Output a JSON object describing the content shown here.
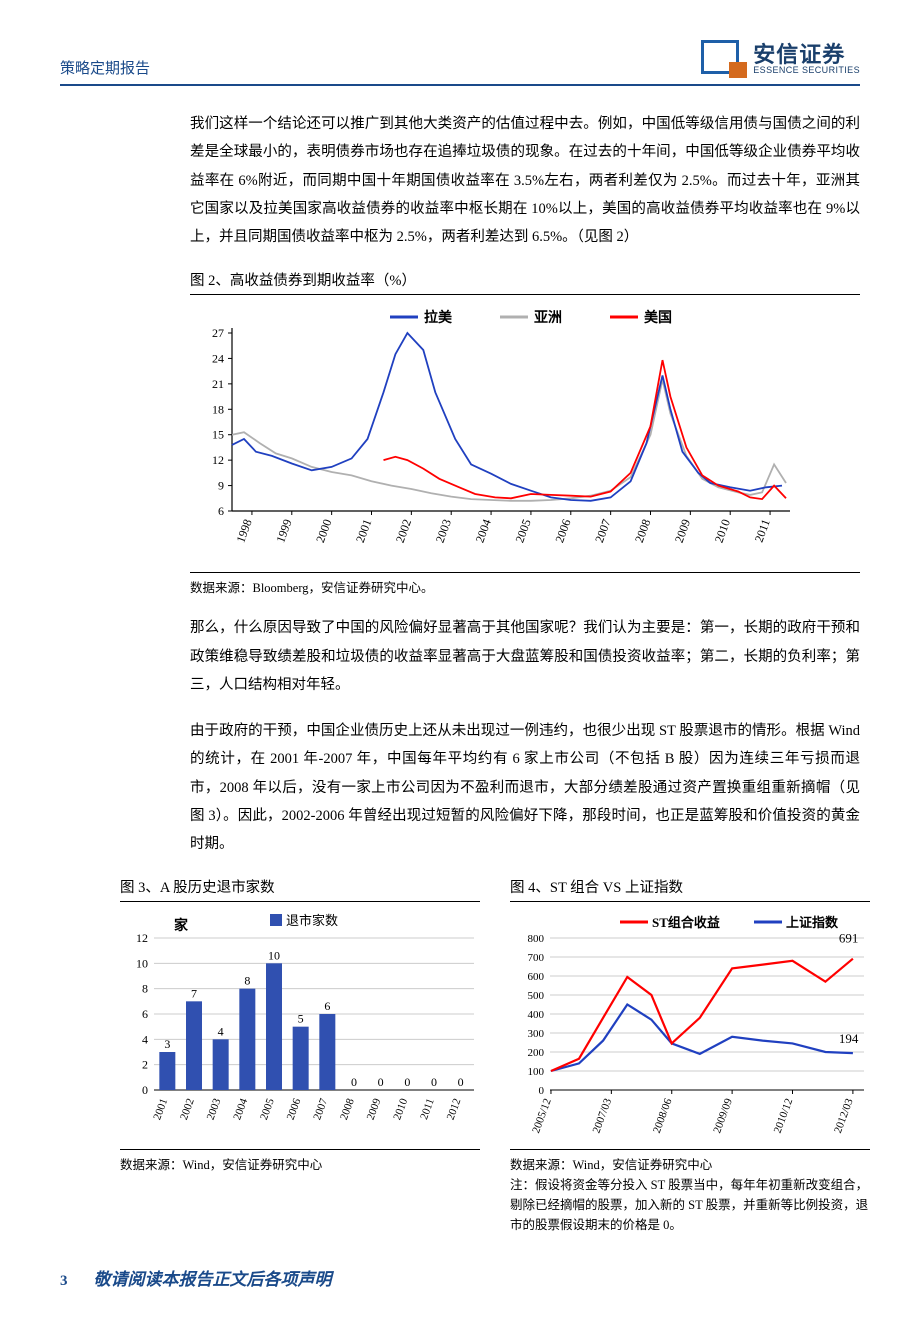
{
  "header": {
    "title": "策略定期报告",
    "logo_cn": "安信证券",
    "logo_en": "ESSENCE SECURITIES"
  },
  "paragraphs": {
    "p1": "我们这样一个结论还可以推广到其他大类资产的估值过程中去。例如，中国低等级信用债与国债之间的利差是全球最小的，表明债券市场也存在追捧垃圾债的现象。在过去的十年间，中国低等级企业债券平均收益率在 6%附近，而同期中国十年期国债收益率在 3.5%左右，两者利差仅为 2.5%。而过去十年，亚洲其它国家以及拉美国家高收益债券的收益率中枢长期在 10%以上，美国的高收益债券平均收益率也在 9%以上，并且同期国债收益率中枢为 2.5%，两者利差达到 6.5%。（见图 2）",
    "p2": "那么，什么原因导致了中国的风险偏好显著高于其他国家呢？我们认为主要是：第一，长期的政府干预和政策维稳导致绩差股和垃圾债的收益率显著高于大盘蓝筹股和国债投资收益率；第二，长期的负利率；第三，人口结构相对年轻。",
    "p3": "由于政府的干预，中国企业债历史上还从未出现过一例违约，也很少出现 ST 股票退市的情形。根据 Wind 的统计，在 2001 年-2007 年，中国每年平均约有 6 家上市公司（不包括 B 股）因为连续三年亏损而退市，2008 年以后，没有一家上市公司因为不盈利而退市，大部分绩差股通过资产置换重组重新摘帽（见图 3）。因此，2002-2006 年曾经出现过短暂的风险偏好下降，那段时间，也正是蓝筹股和价值投资的黄金时期。"
  },
  "fig2": {
    "title": "图 2、高收益债券到期收益率（%）",
    "source": "数据来源：Bloomberg，安信证券研究中心。",
    "type": "line",
    "legend": {
      "latam": "拉美",
      "asia": "亚洲",
      "us": "美国"
    },
    "colors": {
      "latam": "#2040c0",
      "asia": "#b0b0b0",
      "us": "#ff0000",
      "axis": "#000000",
      "bg": "#ffffff"
    },
    "xmin": 1998,
    "xmax": 2012,
    "ymin": 6,
    "ymax": 27,
    "ystep": 3,
    "xticks": [
      1998,
      1999,
      2000,
      2001,
      2002,
      2003,
      2004,
      2005,
      2006,
      2007,
      2008,
      2009,
      2010,
      2011
    ],
    "line_width": 1.8,
    "latam": [
      [
        1998.0,
        13.8
      ],
      [
        1998.3,
        14.5
      ],
      [
        1998.6,
        13.0
      ],
      [
        1999.0,
        12.5
      ],
      [
        1999.5,
        11.6
      ],
      [
        2000.0,
        10.8
      ],
      [
        2000.5,
        11.2
      ],
      [
        2001.0,
        12.2
      ],
      [
        2001.4,
        14.5
      ],
      [
        2001.8,
        20.0
      ],
      [
        2002.1,
        24.5
      ],
      [
        2002.4,
        27.0
      ],
      [
        2002.8,
        25.0
      ],
      [
        2003.1,
        20.0
      ],
      [
        2003.6,
        14.5
      ],
      [
        2004.0,
        11.5
      ],
      [
        2004.5,
        10.4
      ],
      [
        2005.0,
        9.2
      ],
      [
        2005.5,
        8.4
      ],
      [
        2006.0,
        7.6
      ],
      [
        2006.5,
        7.3
      ],
      [
        2007.0,
        7.2
      ],
      [
        2007.5,
        7.6
      ],
      [
        2008.0,
        9.5
      ],
      [
        2008.4,
        14.0
      ],
      [
        2008.8,
        22.0
      ],
      [
        2009.0,
        18.0
      ],
      [
        2009.3,
        13.0
      ],
      [
        2009.7,
        10.5
      ],
      [
        2010.0,
        9.3
      ],
      [
        2010.5,
        8.8
      ],
      [
        2011.0,
        8.4
      ],
      [
        2011.4,
        8.8
      ],
      [
        2011.8,
        9.0
      ]
    ],
    "asia": [
      [
        1998.0,
        15.0
      ],
      [
        1998.3,
        15.3
      ],
      [
        1998.7,
        14.0
      ],
      [
        1999.1,
        12.8
      ],
      [
        1999.5,
        12.2
      ],
      [
        2000.0,
        11.2
      ],
      [
        2000.5,
        10.6
      ],
      [
        2001.0,
        10.2
      ],
      [
        2001.5,
        9.5
      ],
      [
        2002.0,
        9.0
      ],
      [
        2002.5,
        8.6
      ],
      [
        2003.0,
        8.1
      ],
      [
        2003.5,
        7.7
      ],
      [
        2004.0,
        7.4
      ],
      [
        2004.5,
        7.3
      ],
      [
        2005.0,
        7.2
      ],
      [
        2005.5,
        7.2
      ],
      [
        2006.0,
        7.3
      ],
      [
        2006.5,
        7.5
      ],
      [
        2007.0,
        7.8
      ],
      [
        2007.5,
        8.4
      ],
      [
        2008.0,
        10.0
      ],
      [
        2008.5,
        15.0
      ],
      [
        2008.8,
        21.5
      ],
      [
        2009.0,
        17.5
      ],
      [
        2009.4,
        12.5
      ],
      [
        2009.8,
        9.8
      ],
      [
        2010.2,
        8.8
      ],
      [
        2010.7,
        8.2
      ],
      [
        2011.0,
        7.9
      ],
      [
        2011.3,
        8.2
      ],
      [
        2011.6,
        11.5
      ],
      [
        2011.9,
        9.3
      ]
    ],
    "us": [
      [
        2001.8,
        12.0
      ],
      [
        2002.1,
        12.4
      ],
      [
        2002.4,
        12.0
      ],
      [
        2002.8,
        11.0
      ],
      [
        2003.2,
        9.8
      ],
      [
        2003.7,
        8.8
      ],
      [
        2004.1,
        8.0
      ],
      [
        2004.6,
        7.6
      ],
      [
        2005.0,
        7.5
      ],
      [
        2005.5,
        8.0
      ],
      [
        2006.0,
        7.9
      ],
      [
        2006.5,
        7.8
      ],
      [
        2007.0,
        7.7
      ],
      [
        2007.5,
        8.3
      ],
      [
        2008.0,
        10.5
      ],
      [
        2008.5,
        16.0
      ],
      [
        2008.8,
        23.8
      ],
      [
        2009.0,
        19.5
      ],
      [
        2009.4,
        13.5
      ],
      [
        2009.8,
        10.2
      ],
      [
        2010.2,
        9.0
      ],
      [
        2010.7,
        8.3
      ],
      [
        2011.0,
        7.6
      ],
      [
        2011.3,
        7.4
      ],
      [
        2011.6,
        9.0
      ],
      [
        2011.9,
        7.5
      ]
    ]
  },
  "fig3": {
    "title": "图 3、A 股历史退市家数",
    "source": "数据来源：Wind，安信证券研究中心",
    "type": "bar",
    "legend": "退市家数",
    "ylabel": "家",
    "colors": {
      "bar": "#3050b0",
      "axis": "#000000",
      "grid": "#cccccc"
    },
    "ymin": 0,
    "ymax": 12,
    "ystep": 2,
    "categories": [
      "2001",
      "2002",
      "2003",
      "2004",
      "2005",
      "2006",
      "2007",
      "2008",
      "2009",
      "2010",
      "2011",
      "2012"
    ],
    "values": [
      3,
      7,
      4,
      8,
      10,
      5,
      6,
      0,
      0,
      0,
      0,
      0
    ],
    "bar_width": 0.6
  },
  "fig4": {
    "title": "图 4、ST 组合 VS 上证指数",
    "source": "数据来源：Wind，安信证券研究中心",
    "note": "注：假设将资金等分投入 ST 股票当中，每年年初重新改变组合，剔除已经摘帽的股票，加入新的 ST 股票，并重新等比例投资，退市的股票假设期末的价格是 0。",
    "type": "line",
    "legend": {
      "st": "ST组合收益",
      "sh": "上证指数"
    },
    "colors": {
      "st": "#ff0000",
      "sh": "#2040c0",
      "axis": "#000000",
      "grid": "#cccccc"
    },
    "ymin": 0,
    "ymax": 800,
    "ystep": 100,
    "xmin": 2005.9,
    "xmax": 2012.4,
    "xticks": [
      {
        "v": 2005.92,
        "l": "2005/12"
      },
      {
        "v": 2007.17,
        "l": "2007/03"
      },
      {
        "v": 2008.42,
        "l": "2008/06"
      },
      {
        "v": 2009.67,
        "l": "2009/09"
      },
      {
        "v": 2010.92,
        "l": "2010/12"
      },
      {
        "v": 2012.17,
        "l": "2012/03"
      }
    ],
    "line_width": 2.2,
    "st": [
      [
        2005.92,
        100
      ],
      [
        2006.5,
        165
      ],
      [
        2007.0,
        380
      ],
      [
        2007.5,
        595
      ],
      [
        2008.0,
        500
      ],
      [
        2008.42,
        245
      ],
      [
        2009.0,
        380
      ],
      [
        2009.67,
        640
      ],
      [
        2010.3,
        660
      ],
      [
        2010.92,
        680
      ],
      [
        2011.6,
        570
      ],
      [
        2012.17,
        691
      ]
    ],
    "sh": [
      [
        2005.92,
        100
      ],
      [
        2006.5,
        140
      ],
      [
        2007.0,
        260
      ],
      [
        2007.5,
        450
      ],
      [
        2008.0,
        370
      ],
      [
        2008.42,
        245
      ],
      [
        2009.0,
        190
      ],
      [
        2009.67,
        280
      ],
      [
        2010.3,
        260
      ],
      [
        2010.92,
        245
      ],
      [
        2011.6,
        200
      ],
      [
        2012.17,
        194
      ]
    ],
    "end_labels": {
      "st": "691",
      "sh": "194"
    }
  },
  "footer": {
    "page": "3",
    "disclaimer": "敬请阅读本报告正文后各项声明"
  }
}
